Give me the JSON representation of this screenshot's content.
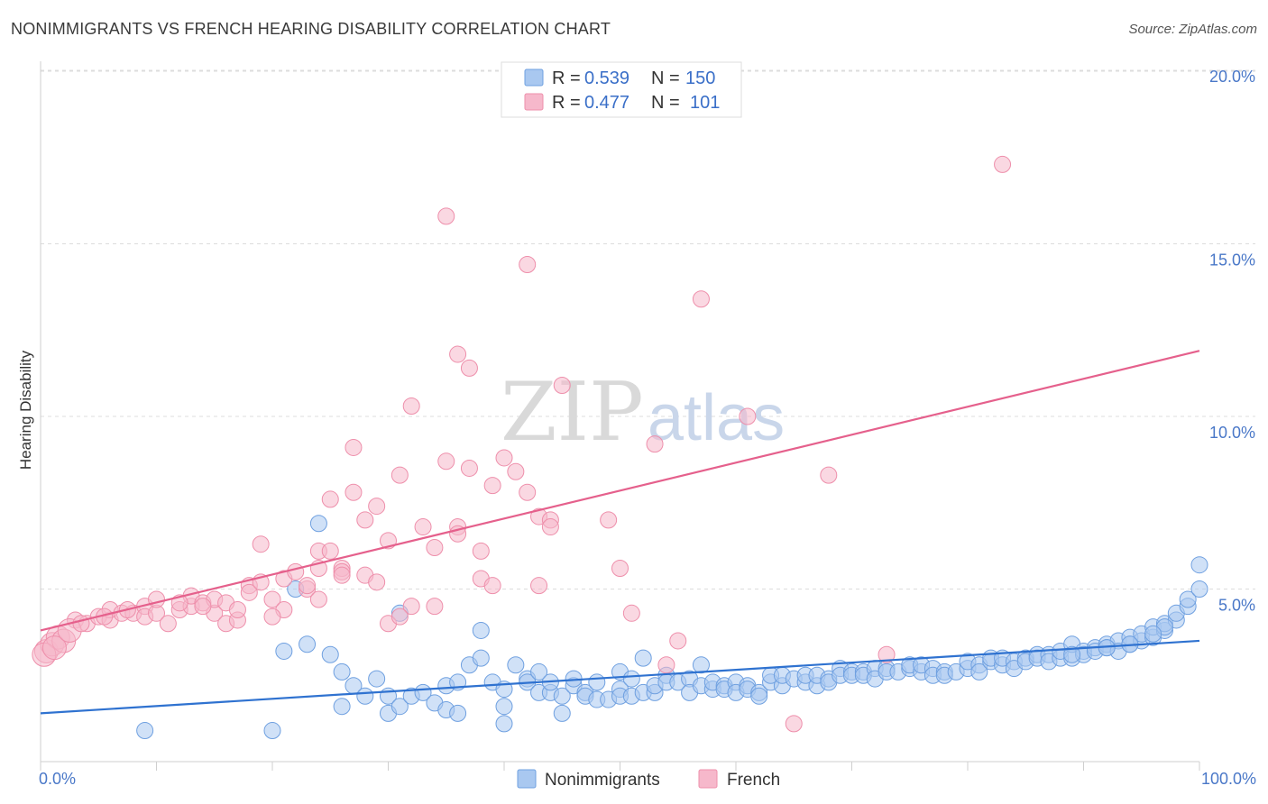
{
  "header": {
    "title": "NONIMMIGRANTS VS FRENCH HEARING DISABILITY CORRELATION CHART",
    "source": "Source: ZipAtlas.com"
  },
  "watermark": {
    "zip": "ZIP",
    "atlas": "atlas"
  },
  "legend_top": {
    "rows": [
      {
        "r_label": "R =",
        "r_value": "0.539",
        "n_label": "N =",
        "n_value": "150",
        "color": "#a9c8f0"
      },
      {
        "r_label": "R =",
        "r_value": "0.477",
        "n_label": "N =",
        "n_value": "101",
        "color": "#f6b8cb"
      }
    ]
  },
  "legend_bottom": {
    "items": [
      {
        "label": "Nonimmigrants",
        "color": "#a9c8f0"
      },
      {
        "label": "French",
        "color": "#f6b8cb"
      }
    ]
  },
  "chart_data": {
    "type": "scatter",
    "title": "NONIMMIGRANTS VS FRENCH HEARING DISABILITY CORRELATION CHART",
    "xlabel": "",
    "ylabel": "Hearing Disability",
    "xlim": [
      0,
      100
    ],
    "ylim": [
      0,
      21
    ],
    "x_tick_labels": [
      "0.0%",
      "100.0%"
    ],
    "y_ticks": [
      5,
      10,
      15,
      20
    ],
    "y_tick_labels": [
      "5.0%",
      "10.0%",
      "15.0%",
      "20.0%"
    ],
    "grid": true,
    "legend_position": "top-center",
    "series": [
      {
        "name": "Nonimmigrants",
        "color": "#a9c8f0",
        "stroke": "#6fa0e0",
        "trend_color": "#2f72d0",
        "trend": {
          "x": [
            0,
            100
          ],
          "y": [
            1.4,
            3.5
          ]
        },
        "points": [
          [
            9,
            0.9
          ],
          [
            20,
            0.9
          ],
          [
            21,
            3.2
          ],
          [
            22,
            5.0
          ],
          [
            24,
            6.9
          ],
          [
            23,
            3.4
          ],
          [
            25,
            3.1
          ],
          [
            26,
            2.6
          ],
          [
            26,
            1.6
          ],
          [
            27,
            2.2
          ],
          [
            28,
            1.9
          ],
          [
            29,
            2.4
          ],
          [
            30,
            1.9
          ],
          [
            30,
            1.4
          ],
          [
            31,
            4.3
          ],
          [
            31,
            1.6
          ],
          [
            32,
            1.9
          ],
          [
            33,
            2.0
          ],
          [
            34,
            1.7
          ],
          [
            35,
            2.2
          ],
          [
            35,
            1.5
          ],
          [
            36,
            1.4
          ],
          [
            36,
            2.3
          ],
          [
            37,
            2.8
          ],
          [
            38,
            3.0
          ],
          [
            38,
            3.8
          ],
          [
            39,
            2.3
          ],
          [
            40,
            2.1
          ],
          [
            40,
            1.6
          ],
          [
            40,
            1.1
          ],
          [
            41,
            2.8
          ],
          [
            42,
            2.4
          ],
          [
            42,
            2.3
          ],
          [
            43,
            2.0
          ],
          [
            43,
            2.6
          ],
          [
            44,
            2.0
          ],
          [
            44,
            2.3
          ],
          [
            45,
            1.9
          ],
          [
            45,
            1.4
          ],
          [
            46,
            2.2
          ],
          [
            46,
            2.4
          ],
          [
            47,
            2.0
          ],
          [
            47,
            1.9
          ],
          [
            48,
            1.8
          ],
          [
            48,
            2.3
          ],
          [
            49,
            1.8
          ],
          [
            50,
            2.6
          ],
          [
            50,
            2.1
          ],
          [
            50,
            1.9
          ],
          [
            51,
            2.4
          ],
          [
            51,
            1.9
          ],
          [
            52,
            2.0
          ],
          [
            52,
            3.0
          ],
          [
            53,
            2.0
          ],
          [
            53,
            2.2
          ],
          [
            54,
            2.5
          ],
          [
            54,
            2.3
          ],
          [
            55,
            2.3
          ],
          [
            56,
            2.4
          ],
          [
            56,
            2.0
          ],
          [
            57,
            2.2
          ],
          [
            57,
            2.8
          ],
          [
            58,
            2.1
          ],
          [
            58,
            2.3
          ],
          [
            59,
            2.2
          ],
          [
            59,
            2.1
          ],
          [
            60,
            2.3
          ],
          [
            60,
            2.0
          ],
          [
            61,
            2.2
          ],
          [
            61,
            2.1
          ],
          [
            62,
            2.0
          ],
          [
            62,
            1.9
          ],
          [
            63,
            2.3
          ],
          [
            63,
            2.5
          ],
          [
            64,
            2.2
          ],
          [
            64,
            2.5
          ],
          [
            65,
            2.4
          ],
          [
            66,
            2.3
          ],
          [
            66,
            2.5
          ],
          [
            67,
            2.2
          ],
          [
            67,
            2.5
          ],
          [
            68,
            2.4
          ],
          [
            68,
            2.3
          ],
          [
            69,
            2.7
          ],
          [
            69,
            2.5
          ],
          [
            70,
            2.6
          ],
          [
            70,
            2.5
          ],
          [
            71,
            2.6
          ],
          [
            71,
            2.5
          ],
          [
            72,
            2.7
          ],
          [
            72,
            2.4
          ],
          [
            73,
            2.7
          ],
          [
            73,
            2.6
          ],
          [
            74,
            2.6
          ],
          [
            75,
            2.7
          ],
          [
            75,
            2.8
          ],
          [
            76,
            2.6
          ],
          [
            76,
            2.8
          ],
          [
            77,
            2.7
          ],
          [
            77,
            2.5
          ],
          [
            78,
            2.6
          ],
          [
            78,
            2.5
          ],
          [
            79,
            2.6
          ],
          [
            80,
            2.7
          ],
          [
            80,
            2.9
          ],
          [
            81,
            2.8
          ],
          [
            81,
            2.6
          ],
          [
            82,
            2.9
          ],
          [
            82,
            3.0
          ],
          [
            83,
            2.8
          ],
          [
            83,
            3.0
          ],
          [
            84,
            2.9
          ],
          [
            84,
            2.7
          ],
          [
            85,
            3.0
          ],
          [
            85,
            2.9
          ],
          [
            86,
            3.1
          ],
          [
            86,
            3.0
          ],
          [
            87,
            3.1
          ],
          [
            87,
            2.9
          ],
          [
            88,
            3.0
          ],
          [
            88,
            3.2
          ],
          [
            89,
            3.0
          ],
          [
            89,
            3.4
          ],
          [
            90,
            3.2
          ],
          [
            90,
            3.1
          ],
          [
            91,
            3.3
          ],
          [
            91,
            3.2
          ],
          [
            92,
            3.4
          ],
          [
            92,
            3.3
          ],
          [
            93,
            3.5
          ],
          [
            93,
            3.2
          ],
          [
            94,
            3.4
          ],
          [
            94,
            3.6
          ],
          [
            95,
            3.5
          ],
          [
            95,
            3.7
          ],
          [
            96,
            3.6
          ],
          [
            96,
            3.9
          ],
          [
            97,
            3.8
          ],
          [
            97,
            4.0
          ],
          [
            98,
            4.1
          ],
          [
            98,
            4.3
          ],
          [
            99,
            4.5
          ],
          [
            99,
            4.7
          ],
          [
            100,
            5.0
          ],
          [
            100,
            5.7
          ],
          [
            97,
            3.9
          ],
          [
            96,
            3.7
          ],
          [
            94,
            3.4
          ],
          [
            92,
            3.3
          ],
          [
            89,
            3.1
          ]
        ]
      },
      {
        "name": "French",
        "color": "#f6b8cb",
        "stroke": "#ee8fab",
        "trend_color": "#e5608c",
        "trend": {
          "x": [
            0,
            100
          ],
          "y": [
            3.8,
            11.9
          ]
        },
        "points": [
          [
            0.5,
            3.2
          ],
          [
            1,
            3.4
          ],
          [
            1.5,
            3.6
          ],
          [
            2,
            3.5
          ],
          [
            3,
            4.1
          ],
          [
            4,
            4.0
          ],
          [
            5,
            4.2
          ],
          [
            6,
            4.1
          ],
          [
            6,
            4.4
          ],
          [
            7,
            4.3
          ],
          [
            8,
            4.3
          ],
          [
            9,
            4.5
          ],
          [
            9,
            4.2
          ],
          [
            10,
            4.3
          ],
          [
            10,
            4.7
          ],
          [
            11,
            4.0
          ],
          [
            12,
            4.4
          ],
          [
            13,
            4.5
          ],
          [
            13,
            4.8
          ],
          [
            14,
            4.6
          ],
          [
            15,
            4.3
          ],
          [
            15,
            4.7
          ],
          [
            16,
            4.6
          ],
          [
            16,
            4.0
          ],
          [
            17,
            4.1
          ],
          [
            17,
            4.4
          ],
          [
            18,
            5.1
          ],
          [
            18,
            4.9
          ],
          [
            19,
            6.3
          ],
          [
            19,
            5.2
          ],
          [
            20,
            4.7
          ],
          [
            21,
            5.3
          ],
          [
            21,
            4.4
          ],
          [
            22,
            5.5
          ],
          [
            23,
            5.0
          ],
          [
            23,
            5.1
          ],
          [
            24,
            4.7
          ],
          [
            24,
            6.1
          ],
          [
            25,
            6.1
          ],
          [
            25,
            7.6
          ],
          [
            26,
            5.6
          ],
          [
            26,
            5.5
          ],
          [
            27,
            9.1
          ],
          [
            27,
            7.8
          ],
          [
            28,
            5.4
          ],
          [
            28,
            7.0
          ],
          [
            29,
            7.4
          ],
          [
            29,
            5.2
          ],
          [
            30,
            4.0
          ],
          [
            30,
            6.4
          ],
          [
            31,
            8.3
          ],
          [
            32,
            4.5
          ],
          [
            32,
            10.3
          ],
          [
            33,
            6.8
          ],
          [
            34,
            6.2
          ],
          [
            34,
            4.5
          ],
          [
            35,
            8.7
          ],
          [
            35,
            15.8
          ],
          [
            36,
            11.8
          ],
          [
            36,
            6.8
          ],
          [
            37,
            11.4
          ],
          [
            37,
            8.5
          ],
          [
            38,
            6.1
          ],
          [
            38,
            5.3
          ],
          [
            39,
            5.1
          ],
          [
            39,
            8.0
          ],
          [
            40,
            8.8
          ],
          [
            41,
            8.4
          ],
          [
            42,
            14.4
          ],
          [
            42,
            7.8
          ],
          [
            43,
            5.1
          ],
          [
            43,
            7.1
          ],
          [
            44,
            7.0
          ],
          [
            44,
            6.8
          ],
          [
            45,
            10.9
          ],
          [
            45,
            19.0
          ],
          [
            49,
            7.0
          ],
          [
            50,
            5.6
          ],
          [
            51,
            4.3
          ],
          [
            53,
            9.2
          ],
          [
            54,
            2.8
          ],
          [
            55,
            3.5
          ],
          [
            57,
            13.4
          ],
          [
            61,
            10.0
          ],
          [
            65,
            1.1
          ],
          [
            68,
            8.3
          ],
          [
            73,
            3.1
          ],
          [
            83,
            17.3
          ],
          [
            0.3,
            3.1
          ],
          [
            1.2,
            3.3
          ],
          [
            2.5,
            3.8
          ],
          [
            3.5,
            4.0
          ],
          [
            5.5,
            4.2
          ],
          [
            7.5,
            4.4
          ],
          [
            12,
            4.6
          ],
          [
            14,
            4.5
          ],
          [
            20,
            4.2
          ],
          [
            24,
            5.6
          ],
          [
            26,
            5.4
          ],
          [
            31,
            4.2
          ],
          [
            36,
            6.6
          ]
        ]
      }
    ]
  }
}
